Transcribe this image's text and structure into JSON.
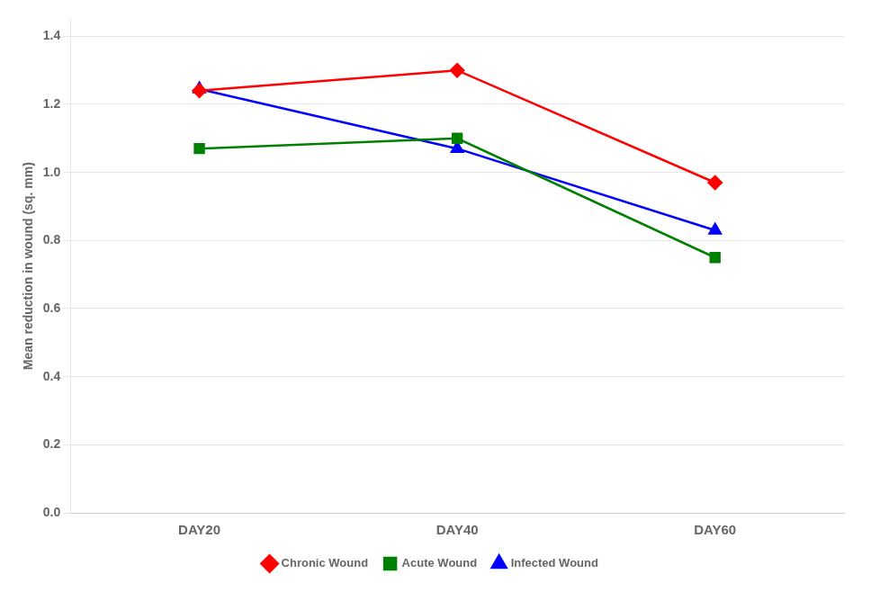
{
  "chart_data": {
    "type": "line",
    "categories": [
      "DAY20",
      "DAY40",
      "DAY60"
    ],
    "series": [
      {
        "name": "Chronic Wound",
        "color": "#FF0000",
        "marker": "diamond",
        "values": [
          1.24,
          1.3,
          0.97
        ]
      },
      {
        "name": "Acute Wound",
        "color": "#008000",
        "marker": "square",
        "values": [
          1.07,
          1.1,
          0.75
        ]
      },
      {
        "name": "Infected Wound",
        "color": "#0000FF",
        "marker": "triangle",
        "values": [
          1.245,
          1.07,
          0.83
        ]
      }
    ],
    "y_label": "Mean reduction in wound (sq. mm)",
    "ylim": [
      0.0,
      1.45
    ],
    "yticks": [
      {
        "value": 0.0,
        "label": "0.0"
      },
      0.2,
      0.4,
      0.6,
      0.8,
      {
        "value": 1.0,
        "label": "1.0"
      },
      1.2,
      1.4
    ],
    "grid": true,
    "legend": "bottom"
  }
}
